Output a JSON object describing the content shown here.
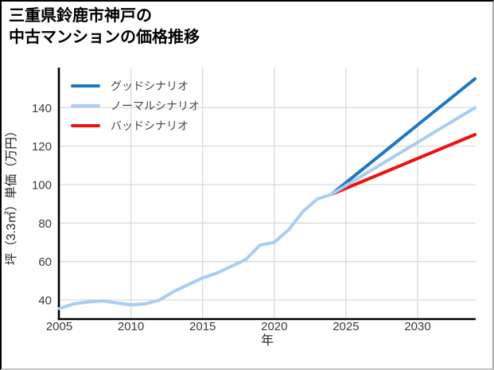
{
  "title": {
    "line1": "三重県鈴鹿市神戸の",
    "line2": "中古マンションの価格推移"
  },
  "chart_data": {
    "type": "line",
    "title": "三重県鈴鹿市神戸の中古マンションの価格推移",
    "xlabel": "年",
    "ylabel": "坪（3.3㎡）単価（万円）",
    "xlim": [
      2005,
      2034.05
    ],
    "ylim": [
      30.5,
      160.8
    ],
    "xticks": [
      2005,
      2010,
      2015,
      2020,
      2025,
      2030
    ],
    "yticks": [
      40,
      60,
      80,
      100,
      120,
      140
    ],
    "grid": true,
    "legend_position": "top-left-inside",
    "colors": {
      "grid": "#d9d9d9",
      "axis": "#000000",
      "tick_text": "#3a3a3a",
      "legend_text": "#474747"
    },
    "series": [
      {
        "key": "good",
        "name": "グッドシナリオ",
        "color": "#1b77c2",
        "width": 4,
        "x": [
          2024,
          2025,
          2026,
          2027,
          2028,
          2029,
          2030,
          2031,
          2032,
          2033,
          2034
        ],
        "values": [
          95,
          101,
          107,
          113,
          119,
          125,
          131,
          137,
          143,
          149,
          155
        ]
      },
      {
        "key": "normal",
        "name": "ノーマルシナリオ",
        "color": "#a9cdf2",
        "width": 4,
        "x": [
          2005,
          2006,
          2007,
          2008,
          2009,
          2010,
          2011,
          2012,
          2013,
          2014,
          2015,
          2016,
          2017,
          2018,
          2019,
          2020,
          2021,
          2022,
          2023,
          2024,
          2025,
          2026,
          2027,
          2028,
          2029,
          2030,
          2031,
          2032,
          2033,
          2034
        ],
        "values": [
          35.5,
          38,
          39,
          39.5,
          38.5,
          37.5,
          38,
          40,
          44.5,
          48,
          51.5,
          54,
          57.5,
          61,
          68.5,
          70,
          76.5,
          86,
          92.5,
          95,
          99.5,
          104,
          108.5,
          113,
          117.5,
          122,
          126.5,
          131,
          135.5,
          140
        ]
      },
      {
        "key": "bad",
        "name": "バッドシナリオ",
        "color": "#ee1111",
        "width": 4,
        "x": [
          2024,
          2025,
          2026,
          2027,
          2028,
          2029,
          2030,
          2031,
          2032,
          2033,
          2034
        ],
        "values": [
          95,
          98.1,
          101.2,
          104.3,
          107.4,
          110.5,
          113.6,
          116.7,
          119.8,
          122.9,
          126
        ]
      }
    ],
    "draw_order": [
      0,
      2,
      1
    ]
  }
}
